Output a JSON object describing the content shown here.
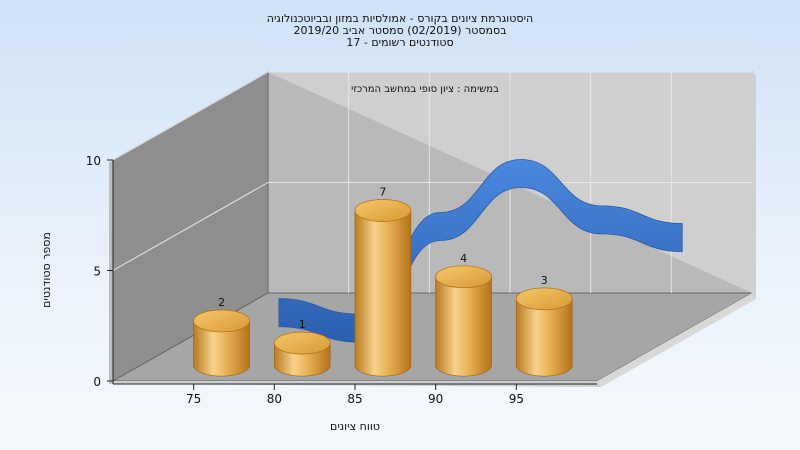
{
  "chart_data": {
    "type": "bar",
    "title_lines": [
      "היסטוגרמת ציונים בקורס - אמולסיות במזון ובביוטכנולוגיה",
      "בסמסטר  (02/2019)  סמסטר אביב 2019/20",
      "סטודנטים רשומים - 17"
    ],
    "subtitle": "במשימה : ציון סופי במחשב המרכזי",
    "xlabel": "טווח ציונים",
    "ylabel": "מספר סטודנטים",
    "x_ticks": [
      "75",
      "80",
      "85",
      "90",
      "95"
    ],
    "y_ticks": [
      "0",
      "5",
      "10"
    ],
    "ylim": [
      0,
      10
    ],
    "x_range": [
      70,
      100
    ],
    "grid": true,
    "series": [
      {
        "style": "bar-3d-cylinder",
        "x": [
          75,
          80,
          85,
          90,
          95
        ],
        "values": [
          2,
          1,
          7,
          4,
          3
        ],
        "data_labels": [
          "2",
          "1",
          "7",
          "4",
          "3"
        ]
      },
      {
        "style": "ribbon-3d",
        "x": [
          75,
          80,
          85,
          90,
          95,
          100
        ],
        "values": [
          0.9,
          0.2,
          4.8,
          7.2,
          5.1,
          4.3
        ]
      }
    ],
    "colors": {
      "bar": "#e0a040",
      "bar_light": "#f8d28a",
      "bar_dark": "#b57319",
      "ribbon": "#3a74cc",
      "ribbon_dark": "#2a5aa8",
      "back_wall": "#b9b9b9",
      "side_wall": "#8e8e8e",
      "floor": "#a6a6a6"
    }
  }
}
